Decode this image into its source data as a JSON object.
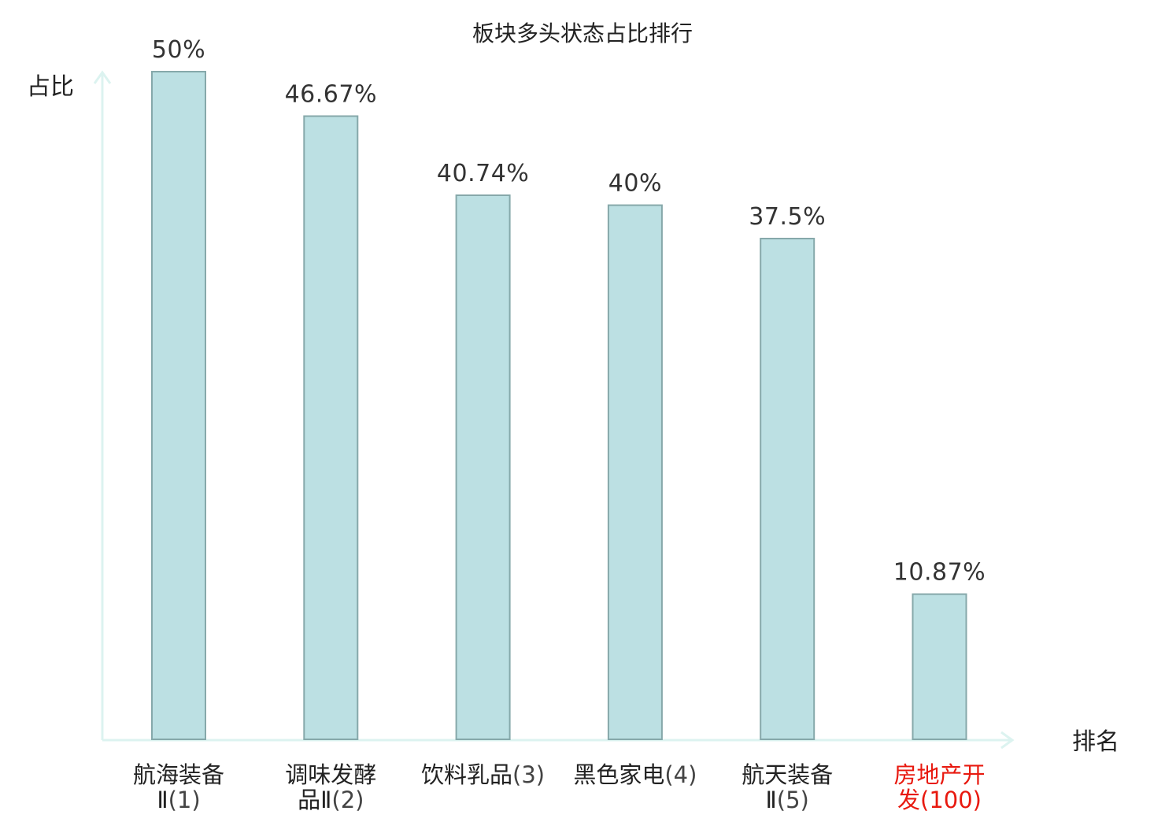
{
  "chart_data": {
    "type": "bar",
    "title": "板块多头状态占比排行",
    "ylabel": "占比",
    "xlabel": "排名",
    "ylim": [
      0,
      50
    ],
    "grid": false,
    "categories": [
      {
        "name_lines": [
          "航海装备",
          "Ⅱ"
        ],
        "rank": "(1)",
        "highlight": false
      },
      {
        "name_lines": [
          "调味发酵",
          "品Ⅱ"
        ],
        "rank": "(2)",
        "highlight": false
      },
      {
        "name_lines": [
          "饮料乳品"
        ],
        "rank": "(3)",
        "highlight": false
      },
      {
        "name_lines": [
          "黑色家电"
        ],
        "rank": "(4)",
        "highlight": false
      },
      {
        "name_lines": [
          "航天装备",
          "Ⅱ"
        ],
        "rank": "(5)",
        "highlight": false
      },
      {
        "name_lines": [
          "房地产开",
          "发"
        ],
        "rank": "(100)",
        "highlight": true
      }
    ],
    "values": [
      50,
      46.67,
      40.74,
      40,
      37.5,
      10.87
    ],
    "value_labels": [
      "50%",
      "46.67%",
      "40.74%",
      "40%",
      "37.5%",
      "10.87%"
    ],
    "colors": {
      "bar_fill": "#bce0e3",
      "bar_stroke": "#86a8aa",
      "axis": "#dcf3f0",
      "highlight_text": "#e8190f"
    }
  }
}
